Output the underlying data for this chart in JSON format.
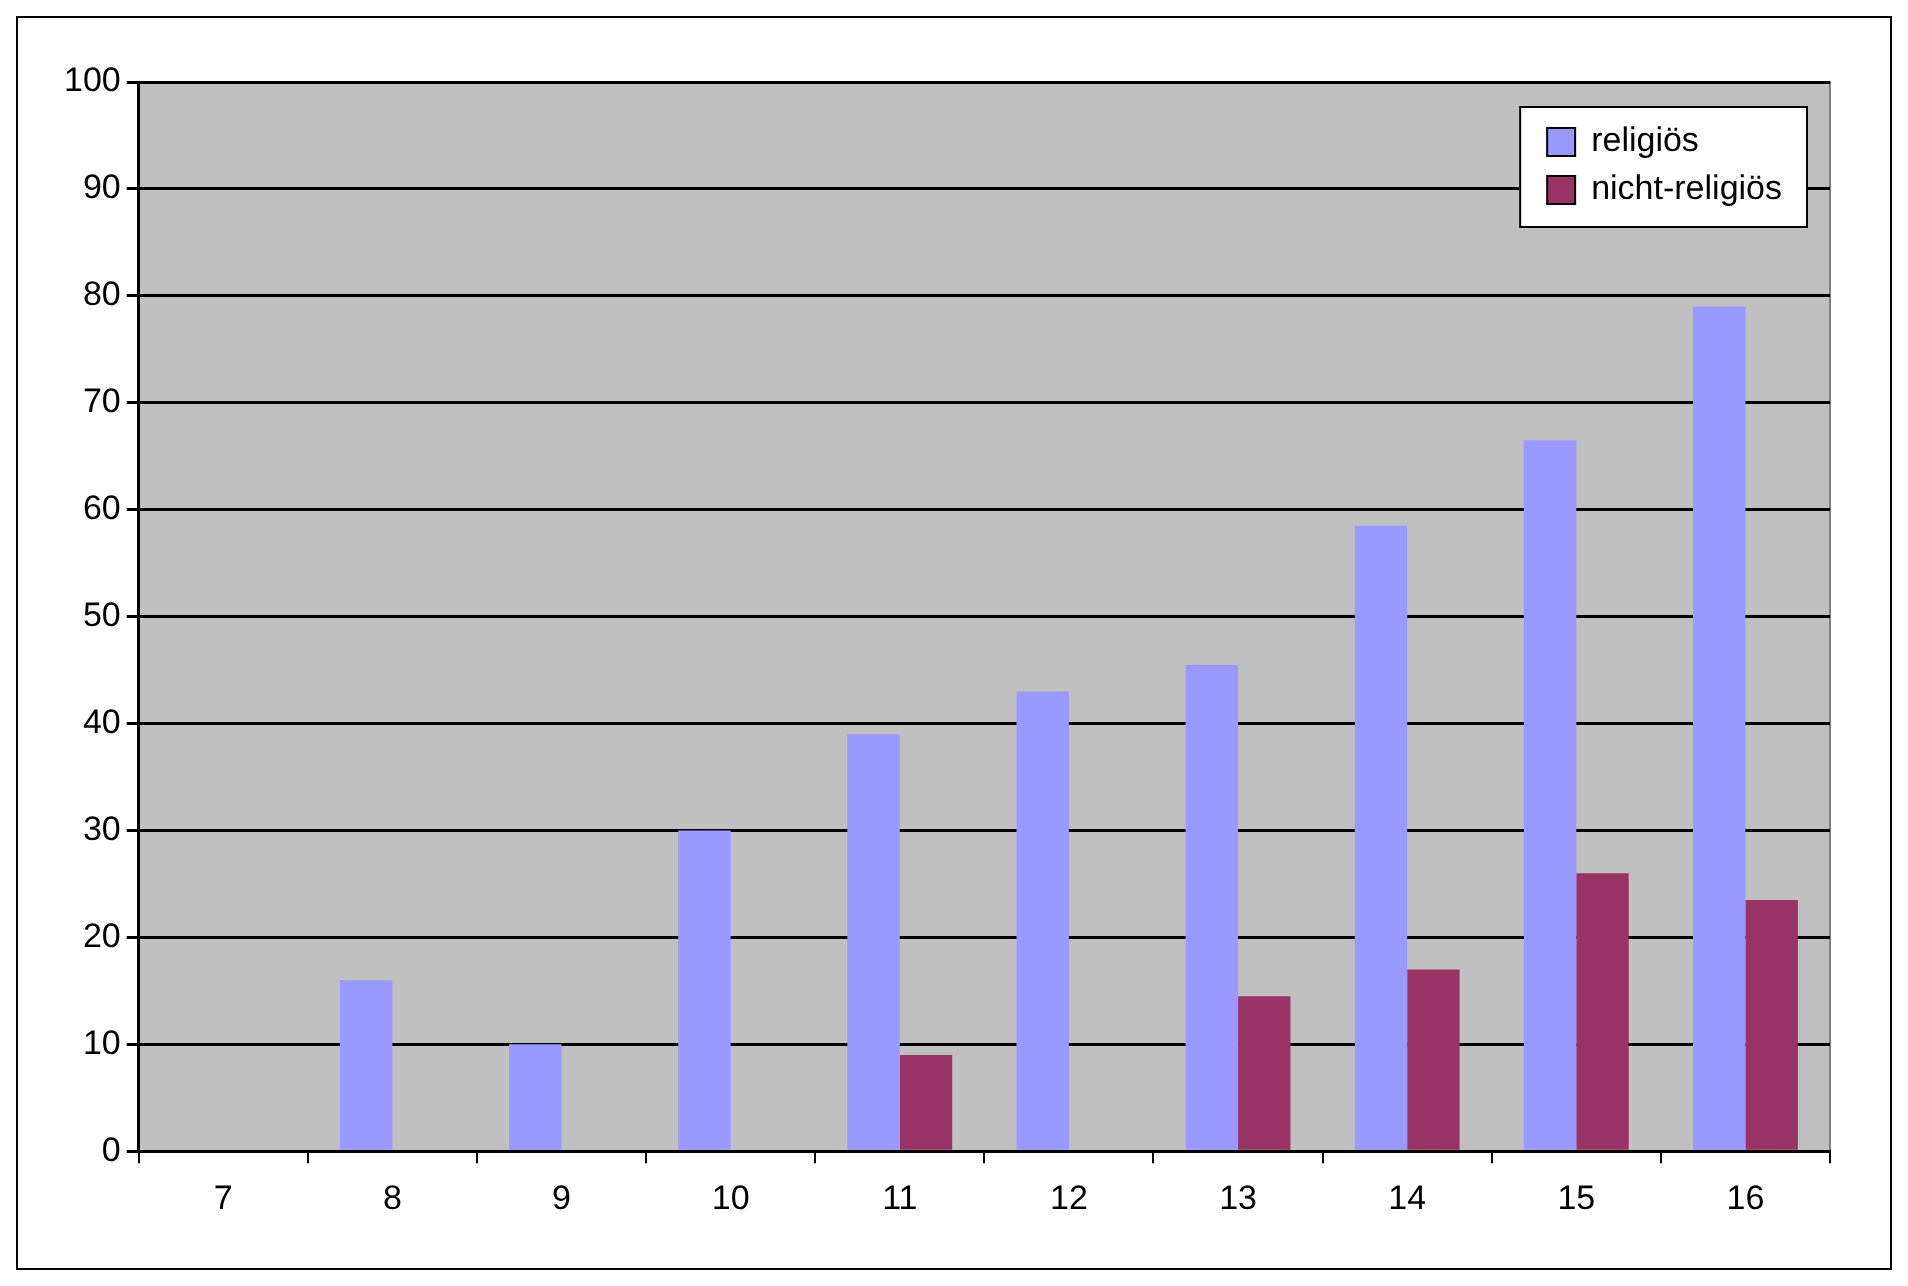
{
  "chart_data": {
    "type": "bar",
    "categories": [
      "7",
      "8",
      "9",
      "10",
      "11",
      "12",
      "13",
      "14",
      "15",
      "16"
    ],
    "series": [
      {
        "name": "religiös",
        "color": "#9999ff",
        "values": [
          null,
          16,
          10,
          30,
          39,
          43,
          45.5,
          58.5,
          66.5,
          79
        ]
      },
      {
        "name": "nicht-religiös",
        "color": "#993366",
        "values": [
          null,
          null,
          null,
          null,
          9,
          null,
          14.5,
          17,
          26,
          23.5
        ]
      }
    ],
    "ylim": [
      0,
      100
    ],
    "yticks": [
      0,
      10,
      20,
      30,
      40,
      50,
      60,
      70,
      80,
      90,
      100
    ],
    "grid": "y",
    "legend": "top right"
  }
}
